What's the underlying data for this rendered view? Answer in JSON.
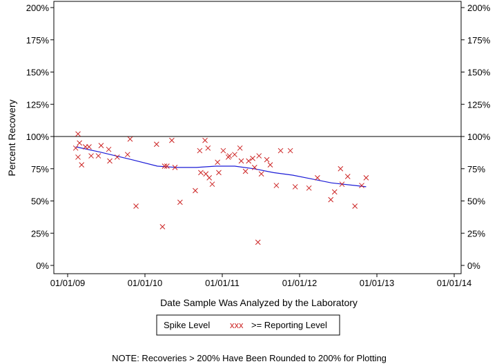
{
  "chart_data": {
    "type": "scatter",
    "xlabel": "Date Sample Was Analyzed by the Laboratory",
    "ylabel": "Percent Recovery",
    "xlim": [
      "2009-01-01",
      "2014-01-01"
    ],
    "ylim": [
      0,
      200
    ],
    "x_ticks": [
      "01/01/09",
      "01/01/10",
      "01/01/11",
      "01/01/12",
      "01/01/13",
      "01/01/14"
    ],
    "y_ticks": [
      "0%",
      "25%",
      "50%",
      "75%",
      "100%",
      "125%",
      "150%",
      "175%",
      "200%"
    ],
    "reference_line": 100,
    "legend": {
      "title": "Spike Level",
      "marker": "xxx",
      "label": ">= Reporting Level",
      "placement": "bottom-center"
    },
    "note": "NOTE: Recoveries > 200% Have Been Rounded to 200% for Plotting",
    "colors": {
      "points": "#cc2222",
      "trend": "#1a1ad6",
      "axis": "#000000"
    },
    "series": [
      {
        "type": "scatter",
        "points": [
          [
            "2009-02-08",
            91
          ],
          [
            "2009-02-19",
            102
          ],
          [
            "2009-02-19",
            84
          ],
          [
            "2009-02-26",
            95
          ],
          [
            "2009-03-08",
            78
          ],
          [
            "2009-03-26",
            92
          ],
          [
            "2009-04-12",
            92
          ],
          [
            "2009-04-22",
            85
          ],
          [
            "2009-05-26",
            85
          ],
          [
            "2009-06-08",
            93
          ],
          [
            "2009-07-14",
            90
          ],
          [
            "2009-07-19",
            81
          ],
          [
            "2009-08-23",
            84
          ],
          [
            "2009-10-11",
            86
          ],
          [
            "2009-10-23",
            98
          ],
          [
            "2009-11-20",
            46
          ],
          [
            "2010-02-25",
            94
          ],
          [
            "2010-03-25",
            30
          ],
          [
            "2010-04-04",
            77
          ],
          [
            "2010-04-15",
            77
          ],
          [
            "2010-05-08",
            97
          ],
          [
            "2010-05-23",
            76
          ],
          [
            "2010-06-16",
            49
          ],
          [
            "2010-08-27",
            58
          ],
          [
            "2010-09-17",
            89
          ],
          [
            "2010-09-22",
            72
          ],
          [
            "2010-10-12",
            97
          ],
          [
            "2010-10-16",
            71
          ],
          [
            "2010-10-26",
            91
          ],
          [
            "2010-11-01",
            68
          ],
          [
            "2010-11-15",
            63
          ],
          [
            "2010-12-10",
            80
          ],
          [
            "2010-12-16",
            72
          ],
          [
            "2011-01-06",
            89
          ],
          [
            "2011-01-30",
            84
          ],
          [
            "2011-02-04",
            85
          ],
          [
            "2011-03-01",
            86
          ],
          [
            "2011-03-26",
            91
          ],
          [
            "2011-04-01",
            81
          ],
          [
            "2011-04-21",
            73
          ],
          [
            "2011-05-06",
            81
          ],
          [
            "2011-05-25",
            83
          ],
          [
            "2011-06-03",
            76
          ],
          [
            "2011-06-19",
            18
          ],
          [
            "2011-06-24",
            85
          ],
          [
            "2011-07-05",
            71
          ],
          [
            "2011-07-31",
            82
          ],
          [
            "2011-08-16",
            78
          ],
          [
            "2011-09-14",
            62
          ],
          [
            "2011-10-04",
            89
          ],
          [
            "2011-11-19",
            89
          ],
          [
            "2011-12-12",
            61
          ],
          [
            "2012-02-15",
            60
          ],
          [
            "2012-03-26",
            68
          ],
          [
            "2012-05-28",
            51
          ],
          [
            "2012-06-15",
            57
          ],
          [
            "2012-07-13",
            75
          ],
          [
            "2012-07-20",
            63
          ],
          [
            "2012-08-16",
            69
          ],
          [
            "2012-09-19",
            46
          ],
          [
            "2012-10-21",
            62
          ],
          [
            "2012-11-11",
            68
          ]
        ]
      },
      {
        "type": "line",
        "points": [
          [
            "2009-02-08",
            92
          ],
          [
            "2009-06-01",
            88
          ],
          [
            "2009-11-01",
            82
          ],
          [
            "2010-03-01",
            77
          ],
          [
            "2010-06-01",
            76
          ],
          [
            "2010-09-01",
            76
          ],
          [
            "2010-12-01",
            77
          ],
          [
            "2011-03-01",
            77
          ],
          [
            "2011-06-01",
            75
          ],
          [
            "2011-09-01",
            72
          ],
          [
            "2011-12-01",
            70
          ],
          [
            "2012-03-01",
            67
          ],
          [
            "2012-06-01",
            64
          ],
          [
            "2012-11-11",
            61
          ]
        ]
      }
    ]
  }
}
